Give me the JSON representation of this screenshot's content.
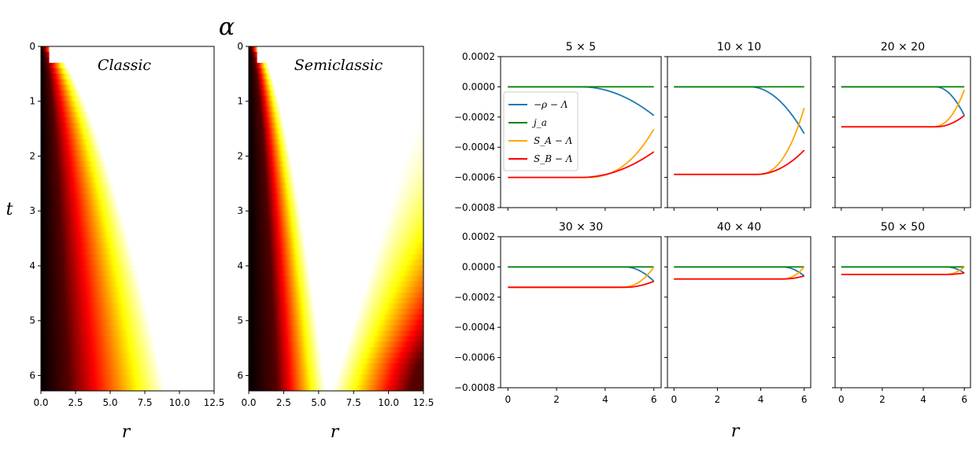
{
  "figure": {
    "alpha_label": "α",
    "heatmap_t_label": "t",
    "heatmap_r_label": "r",
    "lines_r_label": "r"
  },
  "chart_data": [
    {
      "type": "heatmap",
      "title": "Classic",
      "xlabel": "r",
      "ylabel": "t",
      "xlim": [
        0,
        12.5
      ],
      "ylim": [
        6.28,
        0
      ],
      "xticks": [
        "0.0",
        "2.5",
        "5.0",
        "7.5",
        "10.0",
        "12.5"
      ],
      "yticks": [
        "0",
        "1",
        "2",
        "3",
        "4",
        "5",
        "6"
      ],
      "colormap": "hot",
      "front_width_at_t0": 0.1,
      "front_width_at_tmax": 2.0,
      "fade_width_at_t0": 0.5,
      "fade_width_at_tmax": 7.0,
      "rebound": false
    },
    {
      "type": "heatmap",
      "title": "Semiclassic",
      "xlabel": "r",
      "ylabel": "",
      "xlim": [
        0,
        12.5
      ],
      "ylim": [
        6.28,
        0
      ],
      "xticks": [
        "0.0",
        "2.5",
        "5.0",
        "7.5",
        "10.0",
        "12.5"
      ],
      "yticks": [
        "0",
        "1",
        "2",
        "3",
        "4",
        "5",
        "6"
      ],
      "colormap": "hot",
      "front_width_at_t0": 0.1,
      "front_width_at_tmax": 2.0,
      "fade_width_at_t0": 0.5,
      "fade_width_at_tmax": 3.5,
      "rebound": true,
      "rebound_front_at_t1": 12.5,
      "rebound_front_at_tmax": 6.0
    },
    {
      "type": "line",
      "title": "5 × 5",
      "xlim": [
        -0.3,
        6.3
      ],
      "ylim": [
        -0.0008,
        0.0002
      ],
      "xticks": [
        0,
        2,
        4,
        6
      ],
      "yticks": [
        "0.0002",
        "0.0000",
        "−0.0002",
        "−0.0004",
        "−0.0006",
        "−0.0008"
      ],
      "show_yticklabels": true,
      "show_xticklabels": false,
      "legend_position": "center-left",
      "series": [
        {
          "name": "−ρ − Λ",
          "color": "#1f77b4",
          "start": 0.0,
          "end": -0.00019,
          "onset": 3.0,
          "power": 2
        },
        {
          "name": "j_a",
          "color": "#008000",
          "start": 0.0,
          "end": 0.0,
          "onset": 6.0,
          "power": 2
        },
        {
          "name": "S_A − Λ",
          "color": "#ffa500",
          "start": -0.0006,
          "end": -0.00028,
          "onset": 3.2,
          "power": 2.4
        },
        {
          "name": "S_B − Λ",
          "color": "#ff0000",
          "start": -0.0006,
          "end": -0.00043,
          "onset": 3.0,
          "power": 2
        }
      ]
    },
    {
      "type": "line",
      "title": "10 × 10",
      "xlim": [
        -0.3,
        6.3
      ],
      "ylim": [
        -0.0008,
        0.0002
      ],
      "show_yticklabels": false,
      "show_xticklabels": false,
      "series": [
        {
          "color": "#1f77b4",
          "start": 0.0,
          "end": -0.00031,
          "onset": 3.5,
          "power": 2
        },
        {
          "color": "#008000",
          "start": 0.0,
          "end": 0.0,
          "onset": 6.0,
          "power": 2
        },
        {
          "color": "#ffa500",
          "start": -0.00058,
          "end": -0.00014,
          "onset": 3.8,
          "power": 2.4
        },
        {
          "color": "#ff0000",
          "start": -0.00058,
          "end": -0.00042,
          "onset": 3.8,
          "power": 2
        }
      ]
    },
    {
      "type": "line",
      "title": "20 × 20",
      "xlim": [
        -0.3,
        6.3
      ],
      "ylim": [
        -0.0008,
        0.0002
      ],
      "show_yticklabels": false,
      "show_xticklabels": false,
      "series": [
        {
          "color": "#1f77b4",
          "start": 0.0,
          "end": -0.00019,
          "onset": 4.6,
          "power": 2
        },
        {
          "color": "#008000",
          "start": 0.0,
          "end": 0.0,
          "onset": 6.0,
          "power": 2
        },
        {
          "color": "#ffa500",
          "start": -0.000265,
          "end": -2e-05,
          "onset": 4.4,
          "power": 2.4
        },
        {
          "color": "#ff0000",
          "start": -0.000265,
          "end": -0.00019,
          "onset": 4.6,
          "power": 2
        }
      ]
    },
    {
      "type": "line",
      "title": "30 × 30",
      "xlim": [
        -0.3,
        6.3
      ],
      "ylim": [
        -0.0008,
        0.0002
      ],
      "yticks": [
        "0.0002",
        "0.0000",
        "−0.0002",
        "−0.0004",
        "−0.0006",
        "−0.0008"
      ],
      "show_yticklabels": true,
      "show_xticklabels": true,
      "series": [
        {
          "color": "#1f77b4",
          "start": 0.0,
          "end": -9.5e-05,
          "onset": 4.8,
          "power": 2
        },
        {
          "color": "#008000",
          "start": 0.0,
          "end": 0.0,
          "onset": 6.0,
          "power": 2
        },
        {
          "color": "#ffa500",
          "start": -0.000135,
          "end": 0.0,
          "onset": 4.6,
          "power": 2.4
        },
        {
          "color": "#ff0000",
          "start": -0.000135,
          "end": -9.5e-05,
          "onset": 4.8,
          "power": 2
        }
      ]
    },
    {
      "type": "line",
      "title": "40 × 40",
      "xlim": [
        -0.3,
        6.3
      ],
      "ylim": [
        -0.0008,
        0.0002
      ],
      "show_yticklabels": false,
      "show_xticklabels": true,
      "series": [
        {
          "color": "#1f77b4",
          "start": 0.0,
          "end": -6e-05,
          "onset": 5.0,
          "power": 2
        },
        {
          "color": "#008000",
          "start": 0.0,
          "end": 0.0,
          "onset": 6.0,
          "power": 2
        },
        {
          "color": "#ffa500",
          "start": -8e-05,
          "end": 0.0,
          "onset": 4.9,
          "power": 2.4
        },
        {
          "color": "#ff0000",
          "start": -8e-05,
          "end": -6e-05,
          "onset": 5.0,
          "power": 2
        }
      ]
    },
    {
      "type": "line",
      "title": "50 × 50",
      "xlim": [
        -0.3,
        6.3
      ],
      "ylim": [
        -0.0008,
        0.0002
      ],
      "show_yticklabels": false,
      "show_xticklabels": true,
      "series": [
        {
          "color": "#1f77b4",
          "start": 0.0,
          "end": -4e-05,
          "onset": 5.1,
          "power": 2
        },
        {
          "color": "#008000",
          "start": 0.0,
          "end": 0.0,
          "onset": 6.0,
          "power": 2
        },
        {
          "color": "#ffa500",
          "start": -5e-05,
          "end": 0.0,
          "onset": 5.0,
          "power": 2.4
        },
        {
          "color": "#ff0000",
          "start": -5e-05,
          "end": -4e-05,
          "onset": 5.1,
          "power": 2
        }
      ]
    }
  ]
}
